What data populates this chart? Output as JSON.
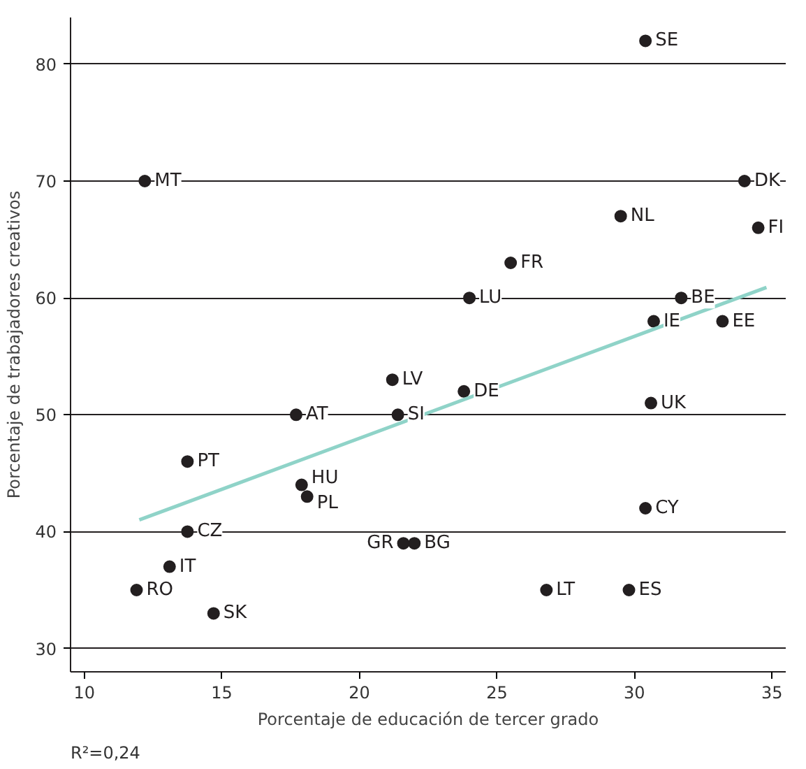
{
  "chart_data": {
    "type": "scatter",
    "xlabel": "Porcentaje de educación de tercer grado",
    "ylabel": "Porcentaje de trabajadores creativos",
    "xlim": [
      9.5,
      35.5
    ],
    "ylim": [
      28,
      84
    ],
    "xticks": [
      10,
      15,
      20,
      25,
      30,
      35
    ],
    "yticks": [
      30,
      40,
      50,
      60,
      70,
      80
    ],
    "grid": "y",
    "marker": "circle",
    "series": [
      {
        "color": "#231f20",
        "x": [
          30.4,
          12.2,
          34.0,
          34.5,
          29.5,
          25.5,
          24.0,
          31.7,
          30.7,
          33.2,
          21.2,
          23.8,
          17.7,
          21.4,
          30.6,
          13.75,
          17.9,
          18.1,
          30.4,
          13.75,
          21.6,
          22.0,
          13.1,
          11.9,
          14.7,
          26.8,
          29.8
        ],
        "values": [
          82,
          70,
          70,
          66,
          67,
          63,
          60,
          60,
          58,
          58,
          53,
          52,
          50,
          50,
          51,
          46,
          44,
          43,
          42,
          40,
          39,
          39,
          37,
          35,
          33,
          35,
          35
        ]
      },
      {
        "type": "line",
        "marker": "none",
        "color": "#8fd3c8",
        "x": [
          12.0,
          34.8
        ],
        "values": [
          41.0,
          60.9
        ]
      }
    ],
    "annotations": [
      {
        "text": "SE",
        "x": 30.4,
        "y": 82
      },
      {
        "text": "MT",
        "x": 12.2,
        "y": 70
      },
      {
        "text": "DK",
        "x": 34.0,
        "y": 70
      },
      {
        "text": "FI",
        "x": 34.5,
        "y": 66
      },
      {
        "text": "NL",
        "x": 29.5,
        "y": 67
      },
      {
        "text": "FR",
        "x": 25.5,
        "y": 63
      },
      {
        "text": "LU",
        "x": 24.0,
        "y": 60
      },
      {
        "text": "BE",
        "x": 31.7,
        "y": 60
      },
      {
        "text": "IE",
        "x": 30.7,
        "y": 58
      },
      {
        "text": "EE",
        "x": 33.2,
        "y": 58
      },
      {
        "text": "LV",
        "x": 21.2,
        "y": 53
      },
      {
        "text": "DE",
        "x": 23.8,
        "y": 52
      },
      {
        "text": "AT",
        "x": 17.7,
        "y": 50
      },
      {
        "text": "SI",
        "x": 21.4,
        "y": 50
      },
      {
        "text": "UK",
        "x": 30.6,
        "y": 51
      },
      {
        "text": "PT",
        "x": 13.75,
        "y": 46
      },
      {
        "text": "HU",
        "x": 17.9,
        "y": 44
      },
      {
        "text": "PL",
        "x": 18.1,
        "y": 43
      },
      {
        "text": "CY",
        "x": 30.4,
        "y": 42
      },
      {
        "text": "CZ",
        "x": 13.75,
        "y": 40
      },
      {
        "text": "GR",
        "x": 21.6,
        "y": 39
      },
      {
        "text": "BG",
        "x": 22.0,
        "y": 39
      },
      {
        "text": "IT",
        "x": 13.1,
        "y": 37
      },
      {
        "text": "RO",
        "x": 11.9,
        "y": 35
      },
      {
        "text": "SK",
        "x": 14.7,
        "y": 33
      },
      {
        "text": "LT",
        "x": 26.8,
        "y": 35
      },
      {
        "text": "ES",
        "x": 29.8,
        "y": 35
      },
      "R²=0,24"
    ]
  }
}
